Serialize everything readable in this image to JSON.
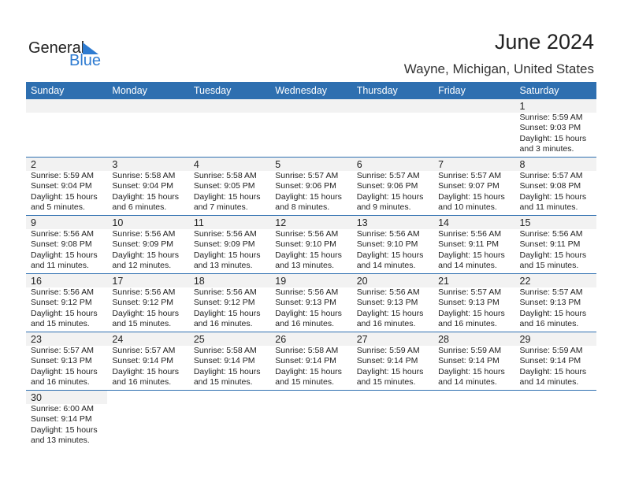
{
  "logo": {
    "text1": "General",
    "text2": "Blue"
  },
  "title": "June 2024",
  "location": "Wayne, Michigan, United States",
  "colors": {
    "header": "#2e6fb0",
    "day_band": "#f2f2f2",
    "logo_blue": "#2e7bd1"
  },
  "weekdays": [
    "Sunday",
    "Monday",
    "Tuesday",
    "Wednesday",
    "Thursday",
    "Friday",
    "Saturday"
  ],
  "weeks": [
    [
      null,
      null,
      null,
      null,
      null,
      null,
      {
        "day": "1",
        "sunrise": "Sunrise: 5:59 AM",
        "sunset": "Sunset: 9:03 PM",
        "daylight": "Daylight: 15 hours",
        "minutes": "and 3 minutes."
      }
    ],
    [
      {
        "day": "2",
        "sunrise": "Sunrise: 5:59 AM",
        "sunset": "Sunset: 9:04 PM",
        "daylight": "Daylight: 15 hours",
        "minutes": "and 5 minutes."
      },
      {
        "day": "3",
        "sunrise": "Sunrise: 5:58 AM",
        "sunset": "Sunset: 9:04 PM",
        "daylight": "Daylight: 15 hours",
        "minutes": "and 6 minutes."
      },
      {
        "day": "4",
        "sunrise": "Sunrise: 5:58 AM",
        "sunset": "Sunset: 9:05 PM",
        "daylight": "Daylight: 15 hours",
        "minutes": "and 7 minutes."
      },
      {
        "day": "5",
        "sunrise": "Sunrise: 5:57 AM",
        "sunset": "Sunset: 9:06 PM",
        "daylight": "Daylight: 15 hours",
        "minutes": "and 8 minutes."
      },
      {
        "day": "6",
        "sunrise": "Sunrise: 5:57 AM",
        "sunset": "Sunset: 9:06 PM",
        "daylight": "Daylight: 15 hours",
        "minutes": "and 9 minutes."
      },
      {
        "day": "7",
        "sunrise": "Sunrise: 5:57 AM",
        "sunset": "Sunset: 9:07 PM",
        "daylight": "Daylight: 15 hours",
        "minutes": "and 10 minutes."
      },
      {
        "day": "8",
        "sunrise": "Sunrise: 5:57 AM",
        "sunset": "Sunset: 9:08 PM",
        "daylight": "Daylight: 15 hours",
        "minutes": "and 11 minutes."
      }
    ],
    [
      {
        "day": "9",
        "sunrise": "Sunrise: 5:56 AM",
        "sunset": "Sunset: 9:08 PM",
        "daylight": "Daylight: 15 hours",
        "minutes": "and 11 minutes."
      },
      {
        "day": "10",
        "sunrise": "Sunrise: 5:56 AM",
        "sunset": "Sunset: 9:09 PM",
        "daylight": "Daylight: 15 hours",
        "minutes": "and 12 minutes."
      },
      {
        "day": "11",
        "sunrise": "Sunrise: 5:56 AM",
        "sunset": "Sunset: 9:09 PM",
        "daylight": "Daylight: 15 hours",
        "minutes": "and 13 minutes."
      },
      {
        "day": "12",
        "sunrise": "Sunrise: 5:56 AM",
        "sunset": "Sunset: 9:10 PM",
        "daylight": "Daylight: 15 hours",
        "minutes": "and 13 minutes."
      },
      {
        "day": "13",
        "sunrise": "Sunrise: 5:56 AM",
        "sunset": "Sunset: 9:10 PM",
        "daylight": "Daylight: 15 hours",
        "minutes": "and 14 minutes."
      },
      {
        "day": "14",
        "sunrise": "Sunrise: 5:56 AM",
        "sunset": "Sunset: 9:11 PM",
        "daylight": "Daylight: 15 hours",
        "minutes": "and 14 minutes."
      },
      {
        "day": "15",
        "sunrise": "Sunrise: 5:56 AM",
        "sunset": "Sunset: 9:11 PM",
        "daylight": "Daylight: 15 hours",
        "minutes": "and 15 minutes."
      }
    ],
    [
      {
        "day": "16",
        "sunrise": "Sunrise: 5:56 AM",
        "sunset": "Sunset: 9:12 PM",
        "daylight": "Daylight: 15 hours",
        "minutes": "and 15 minutes."
      },
      {
        "day": "17",
        "sunrise": "Sunrise: 5:56 AM",
        "sunset": "Sunset: 9:12 PM",
        "daylight": "Daylight: 15 hours",
        "minutes": "and 15 minutes."
      },
      {
        "day": "18",
        "sunrise": "Sunrise: 5:56 AM",
        "sunset": "Sunset: 9:12 PM",
        "daylight": "Daylight: 15 hours",
        "minutes": "and 16 minutes."
      },
      {
        "day": "19",
        "sunrise": "Sunrise: 5:56 AM",
        "sunset": "Sunset: 9:13 PM",
        "daylight": "Daylight: 15 hours",
        "minutes": "and 16 minutes."
      },
      {
        "day": "20",
        "sunrise": "Sunrise: 5:56 AM",
        "sunset": "Sunset: 9:13 PM",
        "daylight": "Daylight: 15 hours",
        "minutes": "and 16 minutes."
      },
      {
        "day": "21",
        "sunrise": "Sunrise: 5:57 AM",
        "sunset": "Sunset: 9:13 PM",
        "daylight": "Daylight: 15 hours",
        "minutes": "and 16 minutes."
      },
      {
        "day": "22",
        "sunrise": "Sunrise: 5:57 AM",
        "sunset": "Sunset: 9:13 PM",
        "daylight": "Daylight: 15 hours",
        "minutes": "and 16 minutes."
      }
    ],
    [
      {
        "day": "23",
        "sunrise": "Sunrise: 5:57 AM",
        "sunset": "Sunset: 9:13 PM",
        "daylight": "Daylight: 15 hours",
        "minutes": "and 16 minutes."
      },
      {
        "day": "24",
        "sunrise": "Sunrise: 5:57 AM",
        "sunset": "Sunset: 9:14 PM",
        "daylight": "Daylight: 15 hours",
        "minutes": "and 16 minutes."
      },
      {
        "day": "25",
        "sunrise": "Sunrise: 5:58 AM",
        "sunset": "Sunset: 9:14 PM",
        "daylight": "Daylight: 15 hours",
        "minutes": "and 15 minutes."
      },
      {
        "day": "26",
        "sunrise": "Sunrise: 5:58 AM",
        "sunset": "Sunset: 9:14 PM",
        "daylight": "Daylight: 15 hours",
        "minutes": "and 15 minutes."
      },
      {
        "day": "27",
        "sunrise": "Sunrise: 5:59 AM",
        "sunset": "Sunset: 9:14 PM",
        "daylight": "Daylight: 15 hours",
        "minutes": "and 15 minutes."
      },
      {
        "day": "28",
        "sunrise": "Sunrise: 5:59 AM",
        "sunset": "Sunset: 9:14 PM",
        "daylight": "Daylight: 15 hours",
        "minutes": "and 14 minutes."
      },
      {
        "day": "29",
        "sunrise": "Sunrise: 5:59 AM",
        "sunset": "Sunset: 9:14 PM",
        "daylight": "Daylight: 15 hours",
        "minutes": "and 14 minutes."
      }
    ],
    [
      {
        "day": "30",
        "sunrise": "Sunrise: 6:00 AM",
        "sunset": "Sunset: 9:14 PM",
        "daylight": "Daylight: 15 hours",
        "minutes": "and 13 minutes."
      }
    ]
  ]
}
